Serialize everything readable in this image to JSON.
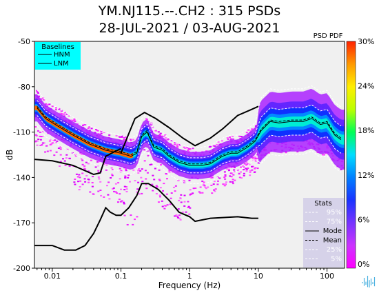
{
  "title_line1": "YM.NJ115.--.CH2 : 315 PSDs",
  "title_line2": "28-JUL-2021 / 03-AUG-2021",
  "chart_data": {
    "type": "heatmap",
    "title": "YM.NJ115.--.CH2 : 315 PSDs",
    "subtitle": "28-JUL-2021 / 03-AUG-2021",
    "xlabel": "Frequency (Hz)",
    "ylabel": "dB",
    "x_scale": "log",
    "xlim": [
      0.0055,
      180
    ],
    "ylim": [
      -200,
      -50
    ],
    "x_ticks": [
      0.01,
      0.1,
      1,
      10,
      100
    ],
    "x_tick_labels": [
      "0.01",
      "0.1",
      "1",
      "10",
      "100"
    ],
    "y_ticks": [
      -200,
      -170,
      -140,
      -110,
      -80,
      -50
    ],
    "y_tick_labels": [
      "-200",
      "-170",
      "-140",
      "-110",
      "-80",
      "-50"
    ],
    "colorbar": {
      "label": "PSD PDF",
      "ticks": [
        0,
        6,
        12,
        18,
        24,
        30
      ],
      "tick_labels": [
        "0%",
        "6%",
        "12%",
        "18%",
        "24%",
        "30%"
      ],
      "colors": [
        "#ff00ff",
        "#cc33ff",
        "#7733ff",
        "#1a33ff",
        "#0080ff",
        "#00ddff",
        "#00ff55",
        "#bbff00",
        "#ffee00",
        "#ff9900",
        "#ff2200"
      ]
    },
    "baselines_legend": {
      "title": "Baselines",
      "entries": [
        "HNM",
        "LNM"
      ],
      "background": "#00ffff",
      "placement": "top-left"
    },
    "stats_legend": {
      "title": "Stats",
      "entries": [
        "95%",
        "75%",
        "Mode",
        "Mean",
        "25%",
        "5%"
      ],
      "placement": "bottom-right"
    },
    "series": [
      {
        "name": "HNM",
        "color": "#000000",
        "points": [
          [
            0.1,
            -124
          ],
          [
            0.13,
            -111
          ],
          [
            0.16,
            -101
          ],
          [
            0.22,
            -97
          ],
          [
            0.32,
            -101
          ],
          [
            0.5,
            -107
          ],
          [
            0.8,
            -114
          ],
          [
            1.2,
            -119
          ],
          [
            2,
            -114
          ],
          [
            3,
            -108
          ],
          [
            5,
            -99
          ],
          [
            8,
            -95
          ],
          [
            10,
            -93
          ]
        ]
      },
      {
        "name": "LNM",
        "color": "#000000",
        "points": [
          [
            0.0055,
            -185
          ],
          [
            0.01,
            -185
          ],
          [
            0.015,
            -188
          ],
          [
            0.022,
            -188
          ],
          [
            0.03,
            -185
          ],
          [
            0.04,
            -177
          ],
          [
            0.05,
            -168
          ],
          [
            0.06,
            -160
          ],
          [
            0.07,
            -163
          ],
          [
            0.085,
            -165
          ],
          [
            0.1,
            -165
          ],
          [
            0.13,
            -160
          ],
          [
            0.17,
            -152
          ],
          [
            0.2,
            -144
          ],
          [
            0.25,
            -144
          ],
          [
            0.35,
            -148
          ],
          [
            0.5,
            -155
          ],
          [
            0.7,
            -163
          ],
          [
            1,
            -166
          ],
          [
            1.2,
            -169
          ],
          [
            2,
            -167
          ],
          [
            5,
            -166
          ],
          [
            8,
            -167
          ],
          [
            10,
            -167
          ]
        ]
      },
      {
        "name": "black-baseline-left",
        "color": "#000000",
        "points": [
          [
            0.0055,
            -128
          ],
          [
            0.01,
            -129
          ],
          [
            0.02,
            -132
          ],
          [
            0.04,
            -138
          ],
          [
            0.05,
            -137
          ],
          [
            0.06,
            -126
          ],
          [
            0.08,
            -123
          ],
          [
            0.1,
            -121
          ]
        ]
      },
      {
        "name": "Mode",
        "color": "#000000",
        "points": [
          [
            0.006,
            -94
          ],
          [
            0.008,
            -101
          ],
          [
            0.012,
            -106
          ],
          [
            0.02,
            -112
          ],
          [
            0.035,
            -118
          ],
          [
            0.06,
            -122
          ],
          [
            0.1,
            -124
          ],
          [
            0.14,
            -126
          ],
          [
            0.17,
            -124
          ],
          [
            0.2,
            -113
          ],
          [
            0.24,
            -110
          ],
          [
            0.3,
            -120
          ],
          [
            0.4,
            -122
          ],
          [
            0.5,
            -126
          ],
          [
            0.7,
            -130
          ],
          [
            1,
            -132
          ],
          [
            1.5,
            -132
          ],
          [
            2,
            -131
          ],
          [
            3,
            -126
          ],
          [
            4,
            -124
          ],
          [
            5,
            -124
          ],
          [
            7,
            -120
          ],
          [
            9,
            -116
          ],
          [
            11,
            -109
          ],
          [
            15,
            -103
          ],
          [
            20,
            -104
          ],
          [
            30,
            -103
          ],
          [
            45,
            -103
          ],
          [
            60,
            -101
          ],
          [
            80,
            -105
          ],
          [
            100,
            -104
          ],
          [
            130,
            -112
          ],
          [
            160,
            -115
          ]
        ]
      }
    ]
  },
  "watermark": {
    "name": "waveform-logo",
    "color": "#4ab0e0"
  }
}
